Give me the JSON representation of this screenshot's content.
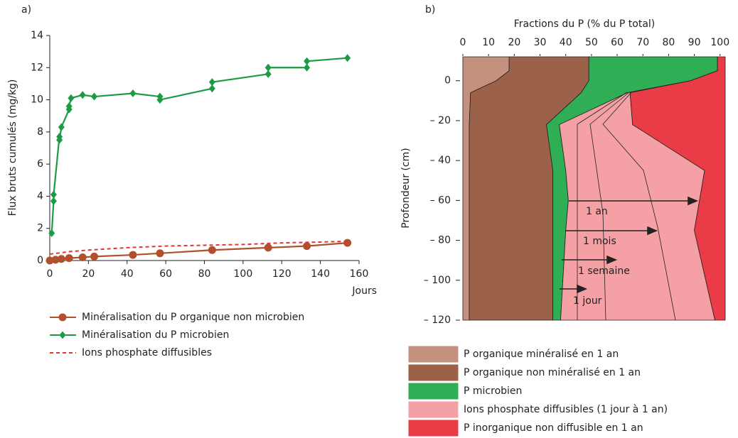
{
  "chart_data": [
    {
      "type": "line",
      "panel_label": "a)",
      "ylabel": "Flux bruts cumulés (mg/kg)",
      "xlabel": "Jours",
      "xlim": [
        0,
        160
      ],
      "xticks": [
        0,
        20,
        40,
        60,
        80,
        100,
        120,
        140,
        160
      ],
      "ylim": [
        0,
        14
      ],
      "yticks": [
        0,
        2,
        4,
        6,
        8,
        10,
        12,
        14
      ],
      "series": [
        {
          "name": "Minéralisation du P organique non microbien",
          "color": "#b0502c",
          "marker": "circle",
          "dashed": false,
          "x": [
            0,
            3,
            6,
            10,
            17,
            23,
            43,
            57,
            84,
            113,
            133,
            154
          ],
          "values": [
            0,
            0.05,
            0.1,
            0.15,
            0.2,
            0.25,
            0.35,
            0.45,
            0.65,
            0.8,
            0.9,
            1.1
          ]
        },
        {
          "name": "Minéralisation du P microbien",
          "color": "#1d9a44",
          "marker": "diamond",
          "dashed": false,
          "x": [
            1,
            2,
            2,
            5,
            5,
            6,
            10,
            10,
            11,
            17,
            23,
            43,
            57,
            57,
            84,
            84,
            113,
            113,
            133,
            133,
            154
          ],
          "values": [
            1.7,
            3.7,
            4.1,
            7.7,
            7.5,
            8.3,
            9.4,
            9.6,
            10.1,
            10.3,
            10.2,
            10.4,
            10.2,
            10.0,
            10.7,
            11.1,
            11.6,
            12.0,
            12.0,
            12.4,
            12.6
          ]
        },
        {
          "name": "Ions phosphate diffusibles",
          "color": "#e8322f",
          "marker": "none",
          "dashed": true,
          "x": [
            0,
            10,
            20,
            40,
            60,
            80,
            100,
            120,
            140,
            154
          ],
          "values": [
            0.4,
            0.55,
            0.65,
            0.8,
            0.9,
            0.95,
            1.0,
            1.1,
            1.15,
            1.2
          ]
        }
      ]
    },
    {
      "type": "stacked-area-horizontal",
      "panel_label": "b)",
      "xlabel": "Fractions du P (% du P total)",
      "ylabel": "Profondeur (cm)",
      "xlim": [
        0,
        102
      ],
      "xticks": [
        0,
        10,
        20,
        30,
        40,
        50,
        60,
        70,
        80,
        90,
        100
      ],
      "ylim": [
        -120,
        12
      ],
      "yticks": [
        {
          "value": -120,
          "label": "– 120"
        },
        {
          "value": -100,
          "label": "– 100"
        },
        {
          "value": -80,
          "label": "– 80"
        },
        {
          "value": -60,
          "label": "– 60"
        },
        {
          "value": -40,
          "label": "– 40"
        },
        {
          "value": -20,
          "label": "– 20"
        },
        0
      ],
      "depths": [
        12,
        5,
        0,
        -6,
        -22,
        -45,
        -60,
        -75,
        -120
      ],
      "series": [
        {
          "name": "P organique minéralisé en 1 an",
          "color": "#c4917e",
          "values": [
            18,
            18,
            13,
            3,
            2.5,
            2.5,
            2.5,
            2.5,
            2.5
          ]
        },
        {
          "name": "P organique non minéralisé en 1 an",
          "color": "#9c6249",
          "values": [
            31,
            31,
            36,
            43,
            30,
            32.5,
            32.5,
            32.5,
            32.5
          ]
        },
        {
          "name": "P microbien",
          "color": "#2fae55",
          "values": [
            50,
            50,
            39.5,
            18,
            5,
            5,
            6,
            5,
            3
          ]
        },
        {
          "name": "Ions phosphate diffusibles (1 jour à 1 an)",
          "color": "#f4a0a5",
          "values": [
            0,
            0,
            0,
            1,
            28.5,
            54,
            51,
            50,
            60
          ]
        },
        {
          "name": "P inorganique non diffusible en 1 an",
          "color": "#ea3c47",
          "values": [
            3,
            3,
            13.5,
            37,
            36,
            8,
            10,
            12,
            4
          ]
        }
      ],
      "annotations": [
        "1 an",
        "1 mois",
        "1 semaine",
        "1 jour"
      ]
    }
  ]
}
